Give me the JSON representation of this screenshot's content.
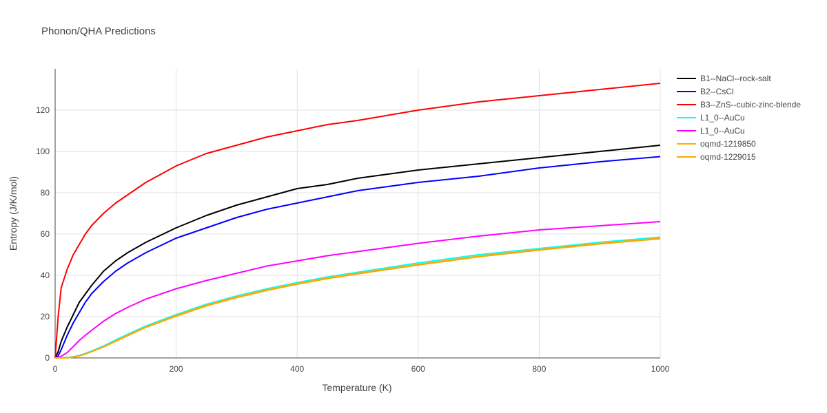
{
  "chart_data": {
    "type": "line",
    "title": "Phonon/QHA Predictions",
    "xlabel": "Temperature (K)",
    "ylabel": "Entropy (J/K/mol)",
    "xlim": [
      0,
      1000
    ],
    "ylim": [
      0,
      140
    ],
    "xticks": [
      "0",
      "200",
      "400",
      "600",
      "800",
      "1000"
    ],
    "yticks": [
      "0",
      "20",
      "40",
      "60",
      "80",
      "100",
      "120"
    ],
    "grid": true,
    "legend_position": "right",
    "series": [
      {
        "name": "B1--NaCl--rock-salt",
        "color": "#000000",
        "x": [
          0,
          5,
          10,
          20,
          30,
          40,
          50,
          60,
          80,
          100,
          120,
          150,
          200,
          250,
          300,
          350,
          400,
          450,
          500,
          600,
          700,
          800,
          900,
          1000
        ],
        "y": [
          0,
          3,
          8,
          15,
          21,
          27,
          31,
          35,
          42,
          47,
          51,
          56,
          63,
          69,
          74,
          78,
          82,
          84,
          87,
          91,
          94,
          97,
          100,
          103
        ]
      },
      {
        "name": "B2--CsCl",
        "color": "#0000ff",
        "x": [
          0,
          5,
          10,
          20,
          30,
          40,
          50,
          60,
          80,
          100,
          120,
          150,
          200,
          250,
          300,
          350,
          400,
          450,
          500,
          600,
          700,
          800,
          900,
          1000
        ],
        "y": [
          0,
          1,
          4,
          11,
          17,
          22,
          27,
          31,
          37,
          42,
          46,
          51,
          58,
          63,
          68,
          72,
          75,
          78,
          81,
          85,
          88,
          92,
          95,
          97.5
        ]
      },
      {
        "name": "B3--ZnS--cubic-zinc-blende",
        "color": "#ff0000",
        "x": [
          0,
          5,
          10,
          20,
          30,
          40,
          50,
          60,
          80,
          100,
          120,
          150,
          200,
          250,
          300,
          350,
          400,
          450,
          500,
          600,
          700,
          800,
          900,
          1000
        ],
        "y": [
          0,
          20,
          34,
          43,
          50,
          55,
          60,
          64,
          70,
          75,
          79,
          85,
          93,
          99,
          103,
          107,
          110,
          113,
          115,
          120,
          124,
          127,
          130,
          133
        ]
      },
      {
        "name": "L1_0--AuCu",
        "color": "#00ffff",
        "x": [
          0,
          10,
          20,
          30,
          40,
          50,
          60,
          80,
          100,
          120,
          150,
          200,
          250,
          300,
          350,
          400,
          450,
          500,
          600,
          700,
          800,
          900,
          1000
        ],
        "y": [
          0,
          0,
          0.2,
          0.6,
          1.2,
          2.2,
          3.3,
          5.8,
          8.7,
          11.5,
          15.5,
          21,
          26,
          30,
          33.5,
          36.5,
          39.2,
          41.5,
          46,
          50,
          53,
          56,
          58.5
        ]
      },
      {
        "name": "L1_0--AuCu",
        "color": "#ff00ff",
        "x": [
          0,
          5,
          10,
          20,
          30,
          40,
          50,
          60,
          80,
          100,
          120,
          150,
          200,
          250,
          300,
          350,
          400,
          450,
          500,
          600,
          700,
          800,
          900,
          1000
        ],
        "y": [
          0,
          0.2,
          0.8,
          2.6,
          5.5,
          8.5,
          11,
          13.3,
          17.8,
          21.5,
          24.5,
          28.5,
          33.5,
          37.5,
          41,
          44.5,
          47,
          49.5,
          51.5,
          55.5,
          59,
          62,
          64,
          66
        ]
      },
      {
        "name": "oqmd-1219850",
        "color": "#ffb000",
        "x": [
          0,
          10,
          20,
          30,
          40,
          50,
          60,
          80,
          100,
          120,
          150,
          200,
          250,
          300,
          350,
          400,
          450,
          500,
          600,
          700,
          800,
          900,
          1000
        ],
        "y": [
          0,
          0,
          0.1,
          0.4,
          1,
          1.9,
          3,
          5.4,
          8.2,
          11,
          15,
          20.5,
          25.5,
          29.5,
          33,
          36,
          38.7,
          41,
          45.3,
          49.3,
          52.5,
          55.5,
          58
        ]
      },
      {
        "name": "oqmd-1229015",
        "color": "#ffa500",
        "x": [
          0,
          10,
          20,
          30,
          40,
          50,
          60,
          80,
          100,
          120,
          150,
          200,
          250,
          300,
          350,
          400,
          450,
          500,
          600,
          700,
          800,
          900,
          1000
        ],
        "y": [
          0,
          0,
          0.1,
          0.4,
          1,
          1.9,
          3,
          5.3,
          8,
          10.8,
          14.8,
          20.2,
          25.2,
          29.2,
          32.7,
          35.7,
          38.4,
          40.7,
          45,
          49,
          52.2,
          55.2,
          57.7
        ]
      }
    ]
  }
}
